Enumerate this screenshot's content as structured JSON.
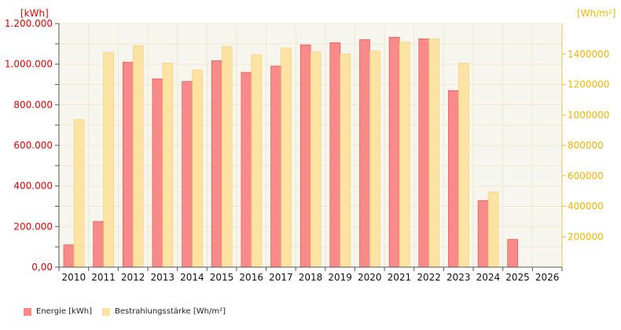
{
  "chart_data": {
    "type": "bar",
    "categories": [
      "2010",
      "2011",
      "2012",
      "2013",
      "2014",
      "2015",
      "2016",
      "2017",
      "2018",
      "2019",
      "2020",
      "2021",
      "2022",
      "2023",
      "2024",
      "2025",
      "2026"
    ],
    "series": [
      {
        "name": "Energie [kWh]",
        "axis": "left",
        "color": "#f88a8a",
        "stroke": "#e64646",
        "values": [
          110000,
          225000,
          1010000,
          928000,
          915000,
          1017000,
          960000,
          991000,
          1095000,
          1106000,
          1121000,
          1133000,
          1125000,
          870000,
          328000,
          137000,
          null
        ]
      },
      {
        "name": "Bestrahlungsstärke [Wh/m²]",
        "axis": "right",
        "color": "#fce3a3",
        "stroke": "#f4cc6c",
        "values": [
          970000,
          1410000,
          1455000,
          1340000,
          1295000,
          1450000,
          1395000,
          1440000,
          1415000,
          1400000,
          1420000,
          1477000,
          1500000,
          1340000,
          495000,
          null,
          null
        ]
      }
    ],
    "y_left": {
      "unit_label": "[kWh]",
      "min": 0,
      "max": 1200000,
      "ticks": [
        0,
        200000,
        400000,
        600000,
        800000,
        1000000,
        1200000
      ],
      "tick_labels": [
        "0,00",
        "200.000",
        "400.000",
        "600.000",
        "800.000",
        "1.000.000",
        "1.200.000"
      ],
      "color": "#e00000"
    },
    "y_right": {
      "unit_label": "[Wh/m²]",
      "min": 0,
      "max": 1600000,
      "ticks": [
        200000,
        400000,
        600000,
        800000,
        1000000,
        1200000,
        1400000
      ],
      "tick_labels": [
        "200000",
        "400000",
        "600000",
        "800000",
        "1000000",
        "1200000",
        "1400000"
      ],
      "color": "#f0b400"
    },
    "grid": true,
    "background": "#f6f6ee",
    "legend_position": "bottom-left"
  },
  "legend": {
    "energy_label": "Energie [kWh]",
    "irradiance_label": "Bestrahlungsstärke [Wh/m²]"
  }
}
